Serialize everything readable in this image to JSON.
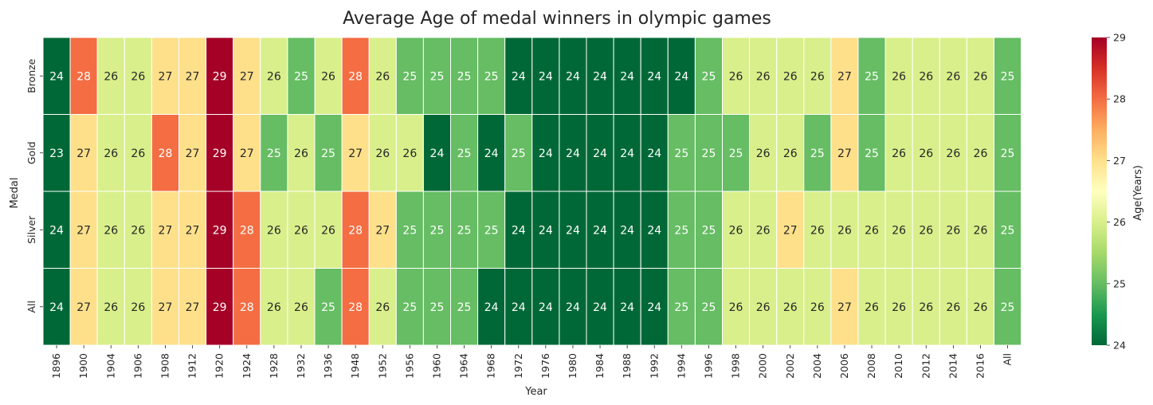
{
  "chart_data": {
    "type": "heatmap",
    "title": "Average Age of medal winners in olympic games",
    "xlabel": "Year",
    "ylabel": "Medal",
    "colorbar_label": "Age(Years)",
    "colormap": "RdYlGn_r",
    "vmin": 24,
    "vmax": 29,
    "colorbar_ticks": [
      "24",
      "25",
      "26",
      "27",
      "28",
      "29"
    ],
    "x_categories": [
      "1896",
      "1900",
      "1904",
      "1906",
      "1908",
      "1912",
      "1920",
      "1924",
      "1928",
      "1932",
      "1936",
      "1948",
      "1952",
      "1956",
      "1960",
      "1964",
      "1968",
      "1972",
      "1976",
      "1980",
      "1984",
      "1988",
      "1992",
      "1994",
      "1996",
      "1998",
      "2000",
      "2002",
      "2004",
      "2006",
      "2008",
      "2010",
      "2012",
      "2014",
      "2016",
      "All"
    ],
    "y_categories": [
      "Bronze",
      "Gold",
      "Silver",
      "All"
    ],
    "values": [
      [
        24.0,
        28.0,
        26.0,
        26.0,
        27.0,
        27.0,
        29.0,
        27.0,
        26.0,
        25.0,
        26.0,
        28.0,
        26.0,
        25.0,
        25.0,
        25.0,
        25.0,
        24.0,
        24.0,
        24.0,
        24.0,
        24.0,
        24.0,
        24.0,
        25.0,
        26.0,
        26.0,
        26.0,
        26.0,
        27.0,
        25.0,
        26.0,
        26.0,
        26.0,
        26.0,
        25.0
      ],
      [
        23.0,
        27.0,
        26.0,
        26.0,
        28.0,
        27.0,
        29.0,
        27.0,
        25.0,
        26.0,
        25.0,
        27.0,
        26.0,
        26.0,
        24.0,
        25.0,
        24.0,
        25.0,
        24.0,
        24.0,
        24.0,
        24.0,
        24.0,
        25.0,
        25.0,
        25.0,
        26.0,
        26.0,
        25.0,
        27.0,
        25.0,
        26.0,
        26.0,
        26.0,
        26.0,
        25.0
      ],
      [
        24.0,
        27.0,
        26.0,
        26.0,
        27.0,
        27.0,
        29.0,
        28.0,
        26.0,
        26.0,
        26.0,
        28.0,
        27.0,
        25.0,
        25.0,
        25.0,
        25.0,
        24.0,
        24.0,
        24.0,
        24.0,
        24.0,
        24.0,
        25.0,
        25.0,
        26.0,
        26.0,
        27.0,
        26.0,
        26.0,
        26.0,
        26.0,
        26.0,
        26.0,
        26.0,
        25.0
      ],
      [
        24.0,
        27.0,
        26.0,
        26.0,
        27.0,
        27.0,
        29.0,
        28.0,
        26.0,
        26.0,
        25.0,
        28.0,
        26.0,
        25.0,
        25.0,
        25.0,
        24.0,
        24.0,
        24.0,
        24.0,
        24.0,
        24.0,
        24.0,
        25.0,
        25.0,
        26.0,
        26.0,
        26.0,
        26.0,
        27.0,
        26.0,
        26.0,
        26.0,
        26.0,
        26.0,
        25.0
      ]
    ],
    "annotations": [
      [
        "24",
        "28",
        "26",
        "26",
        "27",
        "27",
        "29",
        "27",
        "26",
        "25",
        "26",
        "28",
        "26",
        "25",
        "25",
        "25",
        "25",
        "24",
        "24",
        "24",
        "24",
        "24",
        "24",
        "24",
        "25",
        "26",
        "26",
        "26",
        "26",
        "27",
        "25",
        "26",
        "26",
        "26",
        "26",
        "25"
      ],
      [
        "23",
        "27",
        "26",
        "26",
        "28",
        "27",
        "29",
        "27",
        "25",
        "26",
        "25",
        "27",
        "26",
        "26",
        "24",
        "25",
        "24",
        "25",
        "24",
        "24",
        "24",
        "24",
        "24",
        "25",
        "25",
        "25",
        "26",
        "26",
        "25",
        "27",
        "25",
        "26",
        "26",
        "26",
        "26",
        "25"
      ],
      [
        "24",
        "27",
        "26",
        "26",
        "27",
        "27",
        "29",
        "28",
        "26",
        "26",
        "26",
        "28",
        "27",
        "25",
        "25",
        "25",
        "25",
        "24",
        "24",
        "24",
        "24",
        "24",
        "24",
        "25",
        "25",
        "26",
        "26",
        "27",
        "26",
        "26",
        "26",
        "26",
        "26",
        "26",
        "26",
        "25"
      ],
      [
        "24",
        "27",
        "26",
        "26",
        "27",
        "27",
        "29",
        "28",
        "26",
        "26",
        "25",
        "28",
        "26",
        "25",
        "25",
        "25",
        "24",
        "24",
        "24",
        "24",
        "24",
        "24",
        "24",
        "25",
        "25",
        "26",
        "26",
        "26",
        "26",
        "27",
        "26",
        "26",
        "26",
        "26",
        "26",
        "25"
      ]
    ],
    "grid": false,
    "legend": "colorbar-right"
  }
}
